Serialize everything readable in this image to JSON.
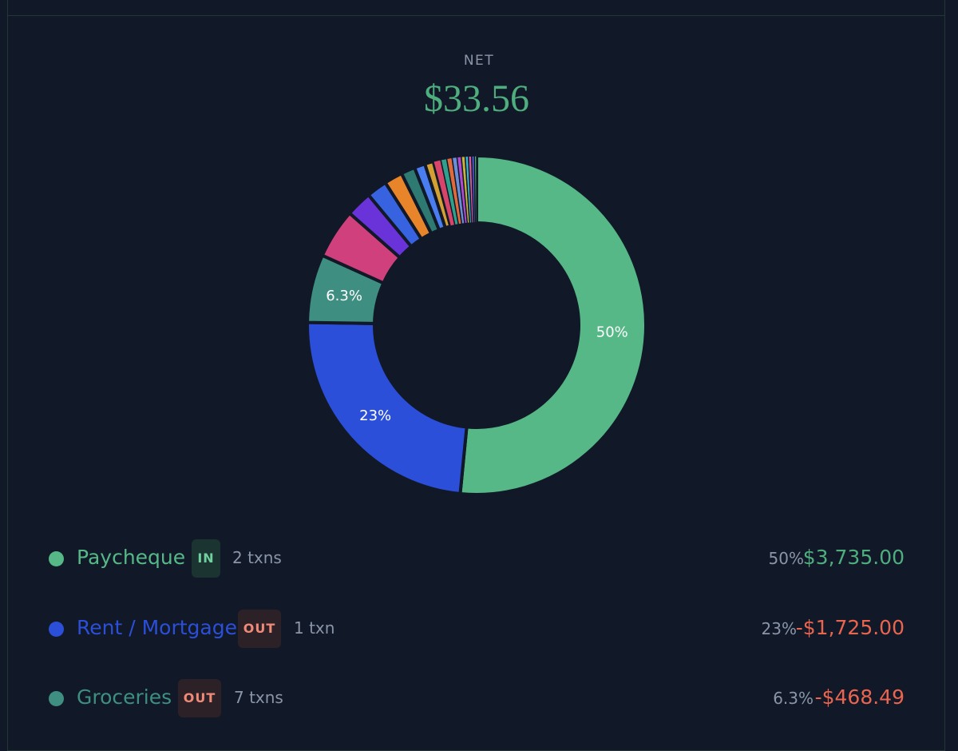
{
  "header": {
    "net_label": "NET",
    "net_value": "$33.56"
  },
  "colors": {
    "background": "#111827",
    "positive": "#4fae7e",
    "negative": "#e9654f"
  },
  "chart_data": {
    "type": "pie",
    "title": "",
    "donut": true,
    "slices": [
      {
        "name": "Paycheque",
        "value": 50,
        "color": "#56b887",
        "label": "50%"
      },
      {
        "name": "Rent / Mortgage",
        "value": 23,
        "color": "#2b4fd8",
        "label": "23%"
      },
      {
        "name": "Groceries",
        "value": 6.3,
        "color": "#3e8f82",
        "label": "6.3%"
      },
      {
        "name": "",
        "value": 4.6,
        "color": "#cf407c",
        "label": ""
      },
      {
        "name": "",
        "value": 2.4,
        "color": "#6a33d9",
        "label": ""
      },
      {
        "name": "",
        "value": 1.9,
        "color": "#3863e0",
        "label": ""
      },
      {
        "name": "",
        "value": 1.7,
        "color": "#e8842a",
        "label": ""
      },
      {
        "name": "",
        "value": 1.3,
        "color": "#2e7a72",
        "label": ""
      },
      {
        "name": "",
        "value": 1.0,
        "color": "#4a7ef0",
        "label": ""
      },
      {
        "name": "",
        "value": 0.8,
        "color": "#d4a032",
        "label": ""
      },
      {
        "name": "",
        "value": 0.7,
        "color": "#d8456a",
        "label": ""
      },
      {
        "name": "",
        "value": 0.55,
        "color": "#2fa08c",
        "label": ""
      },
      {
        "name": "",
        "value": 0.5,
        "color": "#e06a3a",
        "label": ""
      },
      {
        "name": "",
        "value": 0.45,
        "color": "#6a8ed8",
        "label": ""
      },
      {
        "name": "",
        "value": 0.4,
        "color": "#b04ad0",
        "label": ""
      },
      {
        "name": "",
        "value": 0.35,
        "color": "#c9b23a",
        "label": ""
      },
      {
        "name": "",
        "value": 0.3,
        "color": "#3bb8d0",
        "label": ""
      },
      {
        "name": "",
        "value": 0.3,
        "color": "#d85a9a",
        "label": ""
      },
      {
        "name": "",
        "value": 0.25,
        "color": "#5a5ae0",
        "label": ""
      },
      {
        "name": "",
        "value": 0.2,
        "color": "#4ab870",
        "label": ""
      }
    ]
  },
  "legend": [
    {
      "name": "Paycheque",
      "color": "#56b887",
      "direction": "IN",
      "count": "2 txns",
      "pct": "50%",
      "amount": "$3,735.00",
      "sign": "pos"
    },
    {
      "name": "Rent / Mortgage",
      "color": "#2b4fd8",
      "direction": "OUT",
      "count": "1 txn",
      "pct": "23%",
      "amount": "-$1,725.00",
      "sign": "neg"
    },
    {
      "name": "Groceries",
      "color": "#3e8f82",
      "direction": "OUT",
      "count": "7 txns",
      "pct": "6.3%",
      "amount": "-$468.49",
      "sign": "neg"
    }
  ]
}
